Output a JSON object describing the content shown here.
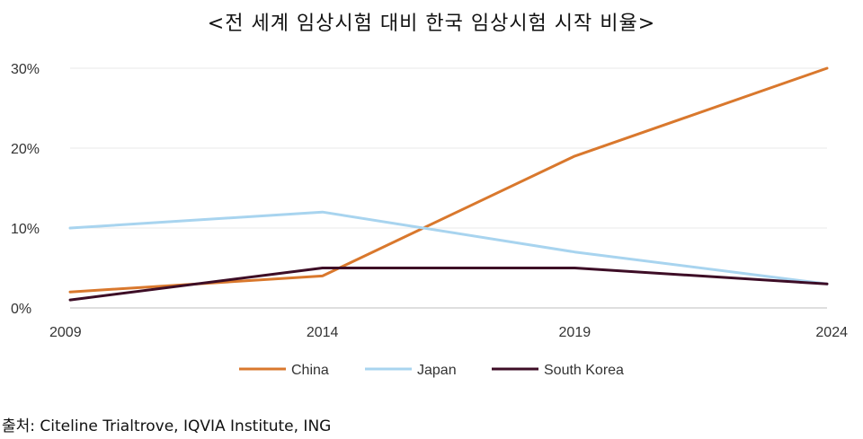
{
  "title": "<전 세계 임상시험 대비 한국 임상시험 시작 비율>",
  "source": "출처: Citeline Trialtrove, IQVIA Institute, ING",
  "chart_data": {
    "type": "line",
    "x": [
      "2009",
      "2014",
      "2019",
      "2024"
    ],
    "y_ticks": [
      "0%",
      "10%",
      "20%",
      "30%"
    ],
    "ylim": [
      0,
      30
    ],
    "grid": true,
    "legend_position": "bottom",
    "series": [
      {
        "name": "China",
        "color": "#d9782d",
        "values": [
          2,
          4,
          19,
          30
        ]
      },
      {
        "name": "Japan",
        "color": "#a8d4ef",
        "values": [
          10,
          12,
          7,
          3
        ]
      },
      {
        "name": "South Korea",
        "color": "#3d0d26",
        "values": [
          1,
          5,
          5,
          3
        ]
      }
    ]
  }
}
